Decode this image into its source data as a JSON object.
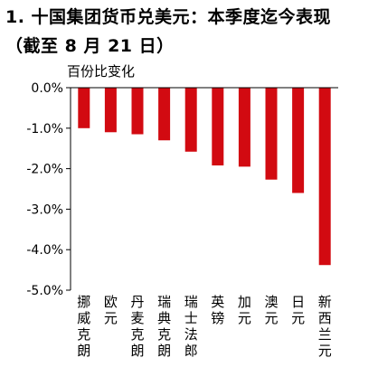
{
  "title_line1": "1. 十国集团货币兑美元：本季度迄今表现",
  "title_line2": "（截至 8 月 21 日）",
  "chart_data": {
    "type": "bar",
    "ylabel": "百份比变化",
    "categories": [
      "挪威克朗",
      "欧元",
      "丹麦克朗",
      "瑞典克朗",
      "瑞士法郎",
      "英镑",
      "加元",
      "澳元",
      "日元",
      "新西兰元"
    ],
    "values": [
      -1.0,
      -1.1,
      -1.15,
      -1.3,
      -1.58,
      -1.92,
      -1.95,
      -2.27,
      -2.6,
      -4.38
    ],
    "ylim": [
      -5.0,
      0.0
    ],
    "yticks": [
      "0.0%",
      "-1.0%",
      "-2.0%",
      "-3.0%",
      "-4.0%",
      "-5.0%"
    ],
    "bar_color": "#d20a11",
    "grid": false,
    "legend": "none"
  }
}
